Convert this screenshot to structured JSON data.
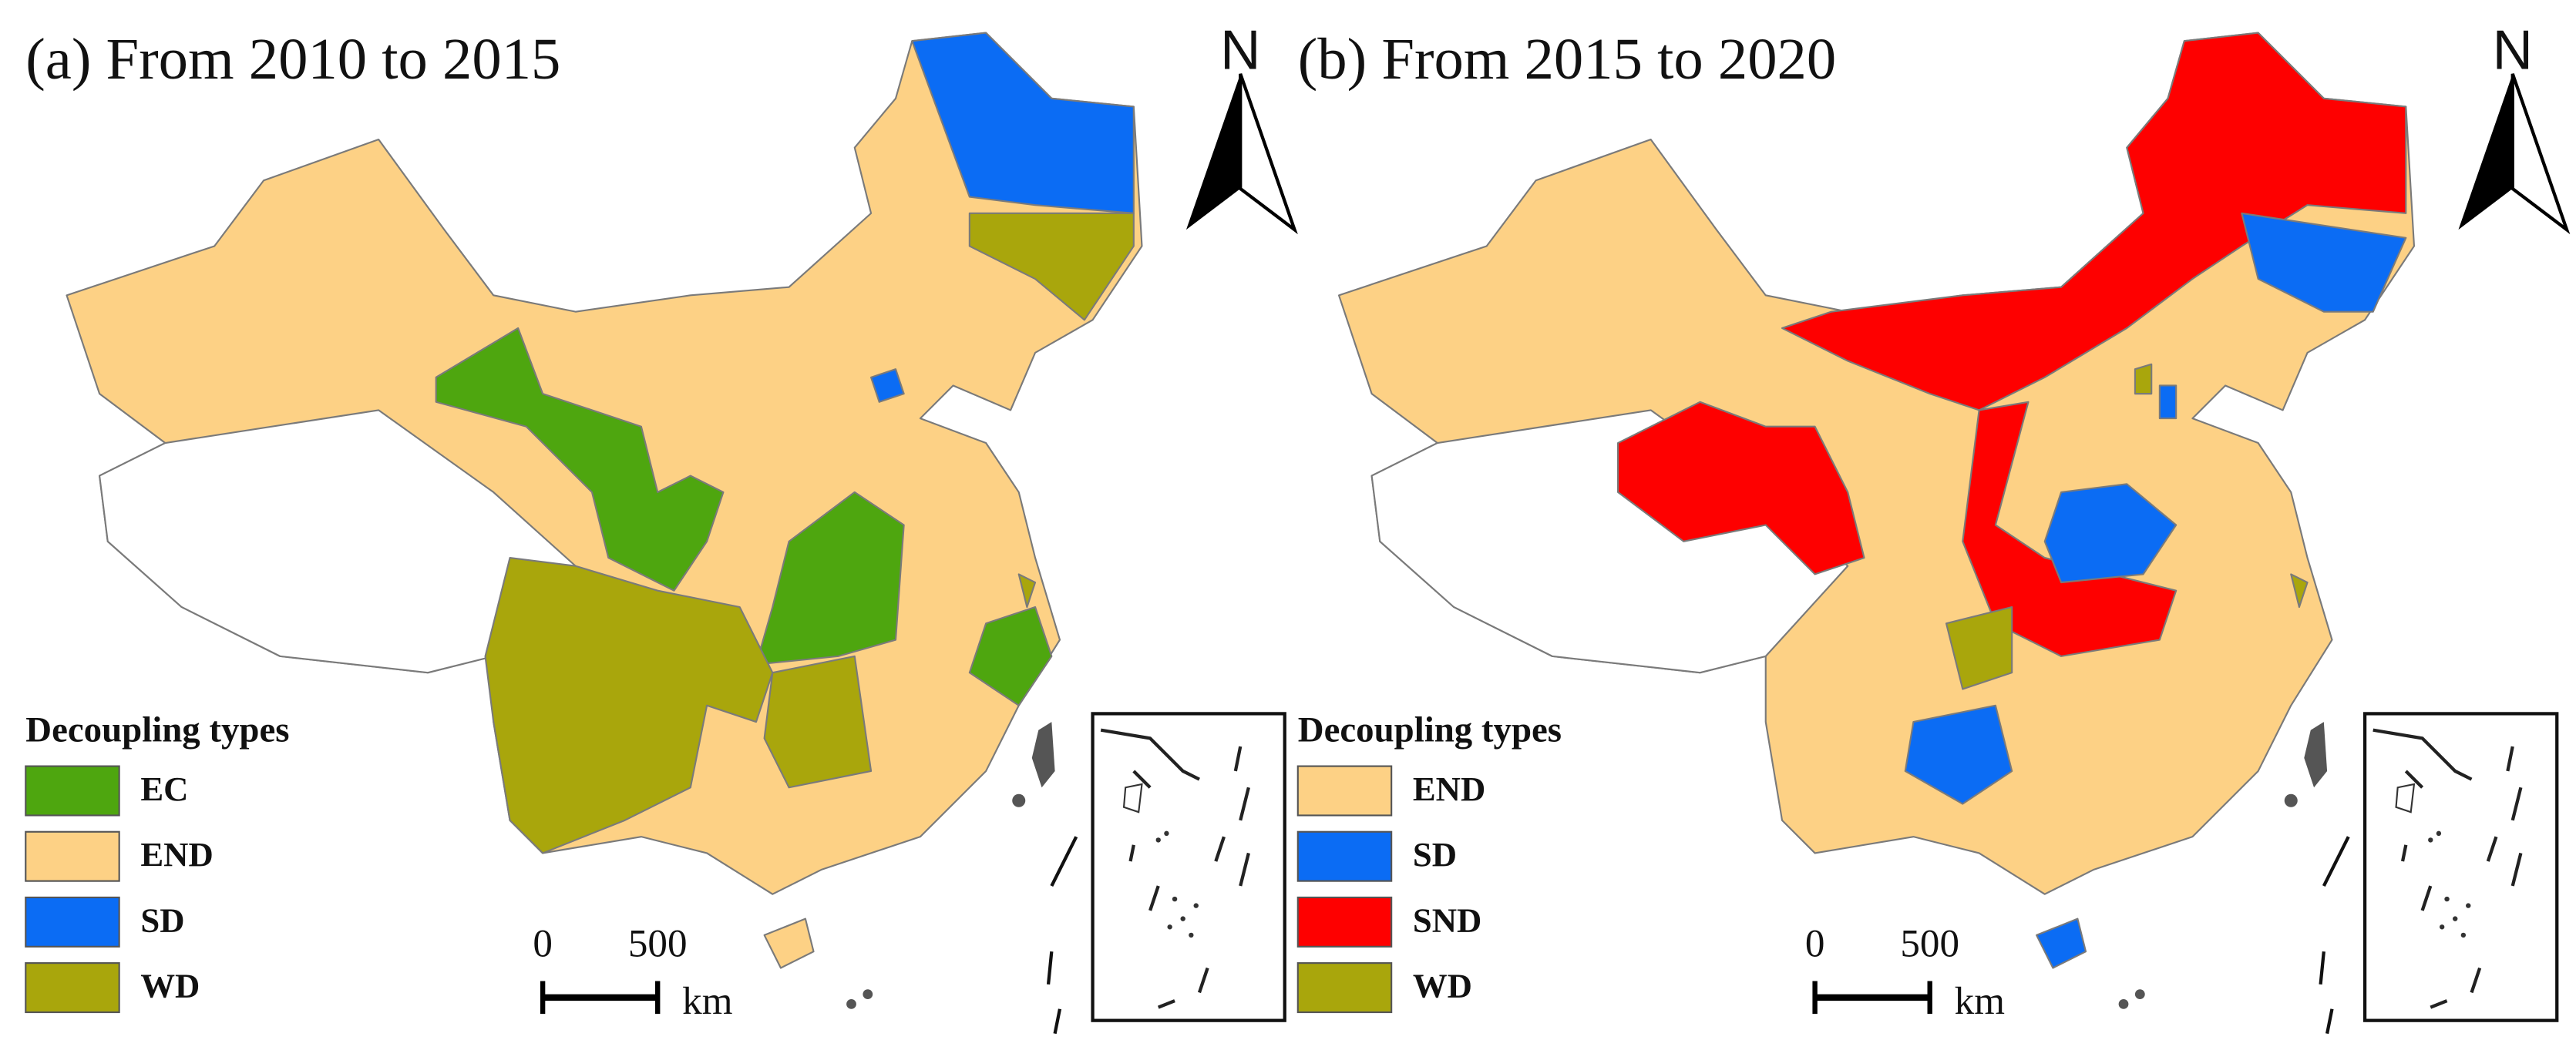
{
  "panels": [
    {
      "title": "(a) From 2010 to 2015",
      "north": "N",
      "legend": {
        "title": "Decoupling types",
        "items": [
          {
            "label": "EC",
            "color": "#4ea60f"
          },
          {
            "label": "END",
            "color": "#fdd185"
          },
          {
            "label": "SD",
            "color": "#0b6cf4"
          },
          {
            "label": "WD",
            "color": "#a9a60c"
          }
        ]
      },
      "scale_bar": {
        "ticks": [
          0,
          500
        ],
        "unit": "km"
      }
    },
    {
      "title": "(b) From 2015 to 2020",
      "north": "N",
      "legend": {
        "title": "Decoupling types",
        "items": [
          {
            "label": "END",
            "color": "#fdd185"
          },
          {
            "label": "SD",
            "color": "#0b6cf4"
          },
          {
            "label": "SND",
            "color": "#fe0000"
          },
          {
            "label": "WD",
            "color": "#a9a60c"
          }
        ]
      },
      "scale_bar": {
        "ticks": [
          0,
          500
        ],
        "unit": "km"
      }
    }
  ]
}
